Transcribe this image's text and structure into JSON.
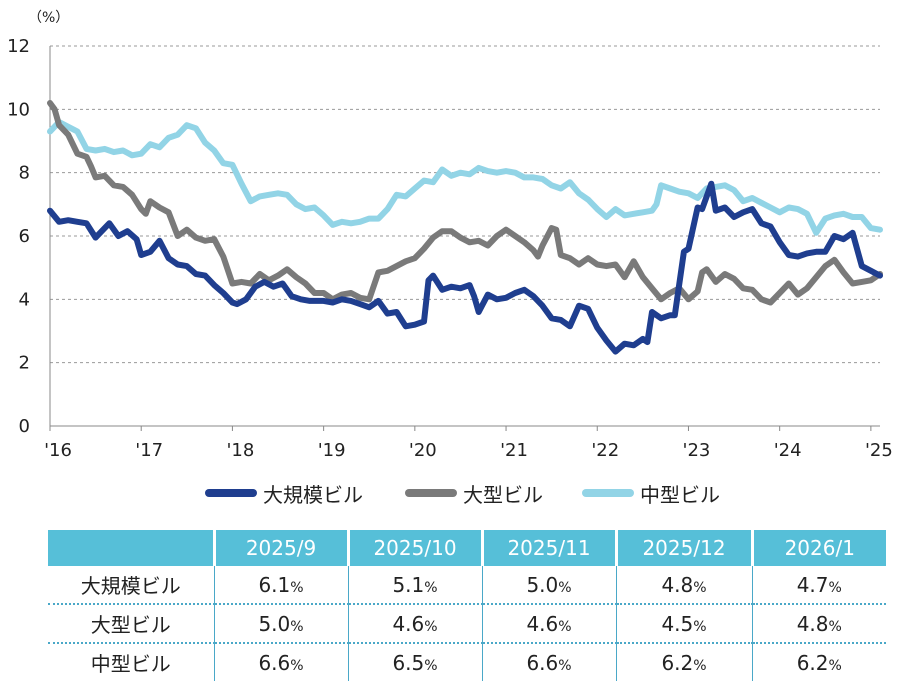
{
  "chart_data": {
    "type": "line",
    "unit_label": "（%）",
    "ylim": [
      0,
      12
    ],
    "y_ticks": [
      "0",
      "2",
      "4",
      "6",
      "8",
      "10",
      "12"
    ],
    "x_range": [
      2016.0,
      2025.1
    ],
    "x_ticks": [
      {
        "x": 2016,
        "label": "'16"
      },
      {
        "x": 2017,
        "label": "'17"
      },
      {
        "x": 2018,
        "label": "'18"
      },
      {
        "x": 2019,
        "label": "'19"
      },
      {
        "x": 2020,
        "label": "'20"
      },
      {
        "x": 2021,
        "label": "'21"
      },
      {
        "x": 2022,
        "label": "'22"
      },
      {
        "x": 2023,
        "label": "'23"
      },
      {
        "x": 2024,
        "label": "'24"
      },
      {
        "x": 2025,
        "label": "'25"
      }
    ],
    "grid": "horizontal-dashed",
    "legend_position": "bottom",
    "series": [
      {
        "name": "大規模ビル",
        "color": "#1f3e8f",
        "points": [
          [
            2016.0,
            6.8
          ],
          [
            2016.1,
            6.45
          ],
          [
            2016.2,
            6.5
          ],
          [
            2016.3,
            6.45
          ],
          [
            2016.4,
            6.4
          ],
          [
            2016.5,
            5.95
          ],
          [
            2016.6,
            6.25
          ],
          [
            2016.65,
            6.4
          ],
          [
            2016.75,
            6.0
          ],
          [
            2016.85,
            6.15
          ],
          [
            2016.95,
            5.9
          ],
          [
            2017.0,
            5.4
          ],
          [
            2017.1,
            5.5
          ],
          [
            2017.2,
            5.85
          ],
          [
            2017.3,
            5.3
          ],
          [
            2017.4,
            5.1
          ],
          [
            2017.5,
            5.05
          ],
          [
            2017.6,
            4.8
          ],
          [
            2017.7,
            4.75
          ],
          [
            2017.8,
            4.45
          ],
          [
            2017.9,
            4.2
          ],
          [
            2018.0,
            3.9
          ],
          [
            2018.05,
            3.85
          ],
          [
            2018.15,
            4.0
          ],
          [
            2018.25,
            4.4
          ],
          [
            2018.35,
            4.55
          ],
          [
            2018.45,
            4.4
          ],
          [
            2018.55,
            4.5
          ],
          [
            2018.65,
            4.1
          ],
          [
            2018.75,
            4.0
          ],
          [
            2018.85,
            3.95
          ],
          [
            2019.0,
            3.95
          ],
          [
            2019.1,
            3.9
          ],
          [
            2019.2,
            4.0
          ],
          [
            2019.3,
            3.95
          ],
          [
            2019.4,
            3.85
          ],
          [
            2019.5,
            3.75
          ],
          [
            2019.6,
            3.95
          ],
          [
            2019.7,
            3.55
          ],
          [
            2019.8,
            3.6
          ],
          [
            2019.9,
            3.15
          ],
          [
            2020.0,
            3.2
          ],
          [
            2020.1,
            3.3
          ],
          [
            2020.15,
            4.6
          ],
          [
            2020.2,
            4.75
          ],
          [
            2020.3,
            4.3
          ],
          [
            2020.4,
            4.4
          ],
          [
            2020.5,
            4.35
          ],
          [
            2020.6,
            4.45
          ],
          [
            2020.65,
            4.1
          ],
          [
            2020.7,
            3.6
          ],
          [
            2020.8,
            4.15
          ],
          [
            2020.9,
            4.0
          ],
          [
            2021.0,
            4.05
          ],
          [
            2021.1,
            4.2
          ],
          [
            2021.2,
            4.3
          ],
          [
            2021.3,
            4.1
          ],
          [
            2021.4,
            3.8
          ],
          [
            2021.5,
            3.4
          ],
          [
            2021.6,
            3.35
          ],
          [
            2021.7,
            3.15
          ],
          [
            2021.8,
            3.8
          ],
          [
            2021.9,
            3.7
          ],
          [
            2022.0,
            3.1
          ],
          [
            2022.1,
            2.7
          ],
          [
            2022.2,
            2.35
          ],
          [
            2022.3,
            2.6
          ],
          [
            2022.4,
            2.55
          ],
          [
            2022.5,
            2.75
          ],
          [
            2022.55,
            2.65
          ],
          [
            2022.6,
            3.6
          ],
          [
            2022.7,
            3.4
          ],
          [
            2022.8,
            3.5
          ],
          [
            2022.85,
            3.5
          ],
          [
            2022.95,
            5.5
          ],
          [
            2023.0,
            5.6
          ],
          [
            2023.1,
            6.9
          ],
          [
            2023.15,
            6.85
          ],
          [
            2023.25,
            7.65
          ],
          [
            2023.3,
            6.8
          ],
          [
            2023.4,
            6.9
          ],
          [
            2023.5,
            6.6
          ],
          [
            2023.6,
            6.75
          ],
          [
            2023.7,
            6.85
          ],
          [
            2023.8,
            6.4
          ],
          [
            2023.9,
            6.3
          ],
          [
            2024.0,
            5.8
          ],
          [
            2024.1,
            5.4
          ],
          [
            2024.2,
            5.35
          ],
          [
            2024.3,
            5.45
          ],
          [
            2024.4,
            5.5
          ],
          [
            2024.5,
            5.5
          ],
          [
            2024.6,
            6.0
          ],
          [
            2024.7,
            5.9
          ],
          [
            2024.8,
            6.1
          ],
          [
            2024.9,
            5.05
          ],
          [
            2025.0,
            4.9
          ],
          [
            2025.1,
            4.75
          ]
        ]
      },
      {
        "name": "大型ビル",
        "color": "#7a7a7a",
        "points": [
          [
            2016.0,
            10.2
          ],
          [
            2016.05,
            10.0
          ],
          [
            2016.1,
            9.5
          ],
          [
            2016.2,
            9.2
          ],
          [
            2016.3,
            8.6
          ],
          [
            2016.4,
            8.5
          ],
          [
            2016.45,
            8.2
          ],
          [
            2016.5,
            7.85
          ],
          [
            2016.6,
            7.9
          ],
          [
            2016.7,
            7.6
          ],
          [
            2016.8,
            7.55
          ],
          [
            2016.9,
            7.3
          ],
          [
            2017.0,
            6.85
          ],
          [
            2017.05,
            6.7
          ],
          [
            2017.1,
            7.1
          ],
          [
            2017.2,
            6.9
          ],
          [
            2017.3,
            6.75
          ],
          [
            2017.4,
            6.0
          ],
          [
            2017.5,
            6.2
          ],
          [
            2017.6,
            5.95
          ],
          [
            2017.7,
            5.85
          ],
          [
            2017.8,
            5.9
          ],
          [
            2017.9,
            5.35
          ],
          [
            2018.0,
            4.5
          ],
          [
            2018.1,
            4.55
          ],
          [
            2018.2,
            4.5
          ],
          [
            2018.3,
            4.8
          ],
          [
            2018.4,
            4.6
          ],
          [
            2018.5,
            4.75
          ],
          [
            2018.6,
            4.95
          ],
          [
            2018.7,
            4.7
          ],
          [
            2018.8,
            4.5
          ],
          [
            2018.9,
            4.2
          ],
          [
            2019.0,
            4.2
          ],
          [
            2019.1,
            4.0
          ],
          [
            2019.2,
            4.15
          ],
          [
            2019.3,
            4.2
          ],
          [
            2019.4,
            4.05
          ],
          [
            2019.5,
            4.0
          ],
          [
            2019.6,
            4.85
          ],
          [
            2019.7,
            4.9
          ],
          [
            2019.8,
            5.05
          ],
          [
            2019.9,
            5.2
          ],
          [
            2020.0,
            5.3
          ],
          [
            2020.1,
            5.6
          ],
          [
            2020.2,
            5.95
          ],
          [
            2020.3,
            6.15
          ],
          [
            2020.4,
            6.15
          ],
          [
            2020.5,
            5.95
          ],
          [
            2020.6,
            5.8
          ],
          [
            2020.7,
            5.85
          ],
          [
            2020.8,
            5.7
          ],
          [
            2020.9,
            6.0
          ],
          [
            2021.0,
            6.2
          ],
          [
            2021.1,
            6.0
          ],
          [
            2021.2,
            5.8
          ],
          [
            2021.3,
            5.55
          ],
          [
            2021.35,
            5.35
          ],
          [
            2021.4,
            5.7
          ],
          [
            2021.5,
            6.25
          ],
          [
            2021.55,
            6.2
          ],
          [
            2021.6,
            5.4
          ],
          [
            2021.7,
            5.3
          ],
          [
            2021.8,
            5.1
          ],
          [
            2021.9,
            5.3
          ],
          [
            2022.0,
            5.1
          ],
          [
            2022.1,
            5.05
          ],
          [
            2022.2,
            5.1
          ],
          [
            2022.3,
            4.7
          ],
          [
            2022.4,
            5.2
          ],
          [
            2022.5,
            4.7
          ],
          [
            2022.6,
            4.35
          ],
          [
            2022.7,
            4.0
          ],
          [
            2022.8,
            4.2
          ],
          [
            2022.9,
            4.35
          ],
          [
            2023.0,
            4.0
          ],
          [
            2023.1,
            4.25
          ],
          [
            2023.15,
            4.85
          ],
          [
            2023.2,
            4.95
          ],
          [
            2023.3,
            4.55
          ],
          [
            2023.4,
            4.8
          ],
          [
            2023.5,
            4.65
          ],
          [
            2023.6,
            4.35
          ],
          [
            2023.7,
            4.3
          ],
          [
            2023.8,
            4.0
          ],
          [
            2023.9,
            3.9
          ],
          [
            2024.0,
            4.2
          ],
          [
            2024.1,
            4.5
          ],
          [
            2024.2,
            4.15
          ],
          [
            2024.3,
            4.35
          ],
          [
            2024.4,
            4.7
          ],
          [
            2024.5,
            5.05
          ],
          [
            2024.6,
            5.25
          ],
          [
            2024.7,
            4.85
          ],
          [
            2024.8,
            4.5
          ],
          [
            2024.9,
            4.55
          ],
          [
            2025.0,
            4.6
          ],
          [
            2025.1,
            4.8
          ]
        ]
      },
      {
        "name": "中型ビル",
        "color": "#92d4e6",
        "points": [
          [
            2016.0,
            9.3
          ],
          [
            2016.1,
            9.6
          ],
          [
            2016.2,
            9.45
          ],
          [
            2016.3,
            9.3
          ],
          [
            2016.4,
            8.75
          ],
          [
            2016.5,
            8.7
          ],
          [
            2016.6,
            8.75
          ],
          [
            2016.7,
            8.65
          ],
          [
            2016.8,
            8.7
          ],
          [
            2016.9,
            8.55
          ],
          [
            2017.0,
            8.6
          ],
          [
            2017.1,
            8.9
          ],
          [
            2017.2,
            8.8
          ],
          [
            2017.3,
            9.1
          ],
          [
            2017.4,
            9.2
          ],
          [
            2017.5,
            9.5
          ],
          [
            2017.6,
            9.4
          ],
          [
            2017.7,
            8.95
          ],
          [
            2017.8,
            8.7
          ],
          [
            2017.9,
            8.3
          ],
          [
            2018.0,
            8.25
          ],
          [
            2018.1,
            7.65
          ],
          [
            2018.2,
            7.1
          ],
          [
            2018.3,
            7.25
          ],
          [
            2018.4,
            7.3
          ],
          [
            2018.5,
            7.35
          ],
          [
            2018.6,
            7.3
          ],
          [
            2018.7,
            7.0
          ],
          [
            2018.8,
            6.85
          ],
          [
            2018.9,
            6.9
          ],
          [
            2019.0,
            6.65
          ],
          [
            2019.1,
            6.35
          ],
          [
            2019.2,
            6.45
          ],
          [
            2019.3,
            6.4
          ],
          [
            2019.4,
            6.45
          ],
          [
            2019.5,
            6.55
          ],
          [
            2019.6,
            6.55
          ],
          [
            2019.7,
            6.85
          ],
          [
            2019.8,
            7.3
          ],
          [
            2019.9,
            7.25
          ],
          [
            2020.0,
            7.5
          ],
          [
            2020.1,
            7.75
          ],
          [
            2020.2,
            7.7
          ],
          [
            2020.3,
            8.1
          ],
          [
            2020.4,
            7.9
          ],
          [
            2020.5,
            8.0
          ],
          [
            2020.6,
            7.95
          ],
          [
            2020.7,
            8.15
          ],
          [
            2020.8,
            8.05
          ],
          [
            2020.9,
            8.0
          ],
          [
            2021.0,
            8.05
          ],
          [
            2021.1,
            8.0
          ],
          [
            2021.2,
            7.85
          ],
          [
            2021.3,
            7.85
          ],
          [
            2021.4,
            7.8
          ],
          [
            2021.5,
            7.6
          ],
          [
            2021.6,
            7.5
          ],
          [
            2021.7,
            7.7
          ],
          [
            2021.8,
            7.35
          ],
          [
            2021.9,
            7.15
          ],
          [
            2022.0,
            6.85
          ],
          [
            2022.1,
            6.6
          ],
          [
            2022.2,
            6.85
          ],
          [
            2022.3,
            6.65
          ],
          [
            2022.4,
            6.7
          ],
          [
            2022.5,
            6.75
          ],
          [
            2022.6,
            6.8
          ],
          [
            2022.65,
            7.0
          ],
          [
            2022.7,
            7.6
          ],
          [
            2022.8,
            7.5
          ],
          [
            2022.9,
            7.4
          ],
          [
            2023.0,
            7.35
          ],
          [
            2023.1,
            7.2
          ],
          [
            2023.2,
            7.5
          ],
          [
            2023.3,
            7.55
          ],
          [
            2023.4,
            7.6
          ],
          [
            2023.5,
            7.45
          ],
          [
            2023.6,
            7.1
          ],
          [
            2023.7,
            7.2
          ],
          [
            2023.8,
            7.05
          ],
          [
            2023.9,
            6.9
          ],
          [
            2024.0,
            6.75
          ],
          [
            2024.1,
            6.9
          ],
          [
            2024.2,
            6.85
          ],
          [
            2024.3,
            6.7
          ],
          [
            2024.4,
            6.1
          ],
          [
            2024.5,
            6.55
          ],
          [
            2024.6,
            6.65
          ],
          [
            2024.7,
            6.7
          ],
          [
            2024.8,
            6.6
          ],
          [
            2024.9,
            6.6
          ],
          [
            2025.0,
            6.25
          ],
          [
            2025.1,
            6.2
          ]
        ]
      }
    ]
  },
  "table": {
    "columns": [
      "2025/9",
      "2025/10",
      "2025/11",
      "2025/12",
      "2026/1"
    ],
    "percent_sign": "%",
    "rows": [
      {
        "label": "大規模ビル",
        "values": [
          "6.1",
          "5.1",
          "5.0",
          "4.8",
          "4.7"
        ]
      },
      {
        "label": "大型ビル",
        "values": [
          "5.0",
          "4.6",
          "4.6",
          "4.5",
          "4.8"
        ]
      },
      {
        "label": "中型ビル",
        "values": [
          "6.6",
          "6.5",
          "6.6",
          "6.2",
          "6.2"
        ]
      }
    ]
  }
}
